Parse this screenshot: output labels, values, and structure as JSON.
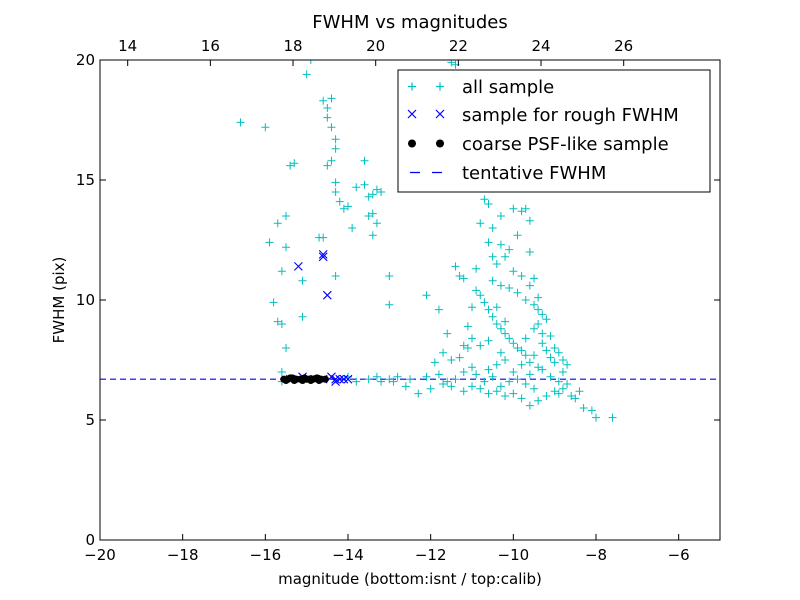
{
  "chart_data": {
    "type": "scatter",
    "title": "FWHM vs magnitudes",
    "xlabel": "magnitude (bottom:isnt / top:calib)",
    "ylabel": "FWHM (pix)",
    "xlim": [
      -20,
      -5
    ],
    "ylim": [
      0,
      20
    ],
    "top_xlim": [
      13.33,
      28.33
    ],
    "x_ticks": [
      -20,
      -18,
      -16,
      -14,
      -12,
      -10,
      -8,
      -6
    ],
    "x_tick_labels": [
      "−20",
      "−18",
      "−16",
      "−14",
      "−12",
      "−10",
      "−8",
      "−6"
    ],
    "y_ticks": [
      0,
      5,
      10,
      15,
      20
    ],
    "y_tick_labels": [
      "0",
      "5",
      "10",
      "15",
      "20"
    ],
    "top_ticks": [
      14,
      16,
      18,
      20,
      22,
      24,
      26
    ],
    "top_tick_labels": [
      "14",
      "16",
      "18",
      "20",
      "22",
      "24",
      "26"
    ],
    "legend_position": "top-right",
    "tentative_fwhm": 6.7,
    "series": [
      {
        "name": "all sample",
        "marker": "plus",
        "color": "#00bfbf",
        "points": [
          [
            -16.6,
            17.4
          ],
          [
            -16.0,
            17.2
          ],
          [
            -15.9,
            12.4
          ],
          [
            -15.7,
            13.2
          ],
          [
            -15.8,
            9.9
          ],
          [
            -15.7,
            9.1
          ],
          [
            -15.6,
            9.0
          ],
          [
            -15.5,
            13.5
          ],
          [
            -15.5,
            12.2
          ],
          [
            -15.6,
            11.2
          ],
          [
            -15.4,
            15.6
          ],
          [
            -15.3,
            15.7
          ],
          [
            -15.6,
            7.0
          ],
          [
            -15.6,
            6.6
          ],
          [
            -15.5,
            8.0
          ],
          [
            -15.1,
            10.8
          ],
          [
            -15.0,
            19.4
          ],
          [
            -14.9,
            20.0
          ],
          [
            -15.1,
            9.3
          ],
          [
            -14.7,
            12.6
          ],
          [
            -14.6,
            12.6
          ],
          [
            -14.6,
            18.3
          ],
          [
            -14.5,
            18.0
          ],
          [
            -14.4,
            18.4
          ],
          [
            -14.5,
            17.6
          ],
          [
            -14.4,
            17.2
          ],
          [
            -14.3,
            16.7
          ],
          [
            -14.3,
            16.3
          ],
          [
            -14.4,
            15.8
          ],
          [
            -14.3,
            14.9
          ],
          [
            -14.3,
            14.5
          ],
          [
            -14.2,
            14.1
          ],
          [
            -14.5,
            15.6
          ],
          [
            -14.3,
            11.0
          ],
          [
            -14.1,
            13.8
          ],
          [
            -14.0,
            13.9
          ],
          [
            -13.9,
            13.0
          ],
          [
            -13.8,
            14.7
          ],
          [
            -13.6,
            15.8
          ],
          [
            -13.6,
            14.8
          ],
          [
            -13.5,
            14.3
          ],
          [
            -13.4,
            14.4
          ],
          [
            -13.3,
            14.6
          ],
          [
            -13.5,
            13.5
          ],
          [
            -13.4,
            13.6
          ],
          [
            -13.3,
            13.2
          ],
          [
            -13.2,
            14.5
          ],
          [
            -13.4,
            12.7
          ],
          [
            -13.0,
            11.0
          ],
          [
            -13.0,
            9.8
          ],
          [
            -12.1,
            10.2
          ],
          [
            -11.7,
            7.8
          ],
          [
            -11.4,
            11.4
          ],
          [
            -11.3,
            11.0
          ],
          [
            -11.2,
            15.7
          ],
          [
            -11.5,
            19.9
          ],
          [
            -11.4,
            19.8
          ],
          [
            -11.0,
            9.7
          ],
          [
            -11.1,
            8.9
          ],
          [
            -11.2,
            8.1
          ],
          [
            -11.6,
            8.6
          ],
          [
            -11.5,
            7.5
          ],
          [
            -10.9,
            17.0
          ],
          [
            -10.8,
            16.8
          ],
          [
            -10.7,
            14.2
          ],
          [
            -10.6,
            14.0
          ],
          [
            -10.6,
            12.4
          ],
          [
            -10.5,
            11.8
          ],
          [
            -10.4,
            11.5
          ],
          [
            -10.3,
            12.3
          ],
          [
            -10.2,
            11.8
          ],
          [
            -10.1,
            12.1
          ],
          [
            -10.0,
            11.2
          ],
          [
            -9.9,
            12.7
          ],
          [
            -9.8,
            13.7
          ],
          [
            -9.7,
            13.8
          ],
          [
            -9.6,
            13.3
          ],
          [
            -9.6,
            12.0
          ],
          [
            -9.5,
            10.9
          ],
          [
            -9.4,
            10.1
          ],
          [
            -9.3,
            9.4
          ],
          [
            -9.2,
            9.2
          ],
          [
            -9.1,
            8.5
          ],
          [
            -9.0,
            8.0
          ],
          [
            -8.9,
            7.8
          ],
          [
            -8.8,
            7.5
          ],
          [
            -8.7,
            7.3
          ],
          [
            -10.9,
            10.4
          ],
          [
            -10.8,
            10.2
          ],
          [
            -10.7,
            9.9
          ],
          [
            -10.6,
            9.6
          ],
          [
            -10.5,
            9.3
          ],
          [
            -10.4,
            9.0
          ],
          [
            -10.3,
            8.8
          ],
          [
            -10.2,
            8.6
          ],
          [
            -10.1,
            8.4
          ],
          [
            -10.0,
            8.2
          ],
          [
            -9.9,
            8.0
          ],
          [
            -9.8,
            7.9
          ],
          [
            -9.7,
            7.7
          ],
          [
            -10.5,
            10.8
          ],
          [
            -10.3,
            10.6
          ],
          [
            -10.1,
            10.5
          ],
          [
            -9.9,
            10.3
          ],
          [
            -9.7,
            10.0
          ],
          [
            -9.5,
            9.8
          ],
          [
            -9.4,
            9.0
          ],
          [
            -9.3,
            8.2
          ],
          [
            -9.5,
            7.7
          ],
          [
            -9.6,
            7.4
          ],
          [
            -11.0,
            7.2
          ],
          [
            -11.3,
            7.6
          ],
          [
            -11.9,
            7.4
          ],
          [
            -11.8,
            6.9
          ],
          [
            -12.1,
            6.8
          ],
          [
            -11.2,
            7.0
          ],
          [
            -10.9,
            6.9
          ],
          [
            -10.6,
            7.1
          ],
          [
            -10.4,
            7.3
          ],
          [
            -10.2,
            7.5
          ],
          [
            -10.0,
            7.0
          ],
          [
            -9.8,
            7.3
          ],
          [
            -9.6,
            6.9
          ],
          [
            -9.3,
            7.1
          ],
          [
            -9.1,
            6.8
          ],
          [
            -8.9,
            6.6
          ],
          [
            -8.8,
            6.3
          ],
          [
            -8.6,
            6.0
          ],
          [
            -8.5,
            5.9
          ],
          [
            -8.3,
            5.5
          ],
          [
            -8.1,
            5.4
          ],
          [
            -8.0,
            5.1
          ],
          [
            -7.6,
            5.1
          ],
          [
            -9.0,
            6.2
          ],
          [
            -9.2,
            6.0
          ],
          [
            -9.4,
            5.8
          ],
          [
            -9.6,
            5.6
          ],
          [
            -9.8,
            5.9
          ],
          [
            -10.0,
            6.1
          ],
          [
            -10.2,
            6.0
          ],
          [
            -10.4,
            6.2
          ],
          [
            -10.6,
            6.1
          ],
          [
            -10.8,
            6.3
          ],
          [
            -11.0,
            6.4
          ],
          [
            -11.2,
            6.2
          ],
          [
            -11.5,
            6.4
          ],
          [
            -12.0,
            6.3
          ],
          [
            -12.3,
            6.1
          ],
          [
            -12.6,
            6.4
          ],
          [
            -12.9,
            6.6
          ],
          [
            -13.2,
            6.6
          ],
          [
            -13.5,
            6.7
          ],
          [
            -13.8,
            6.6
          ],
          [
            -14.0,
            6.8
          ],
          [
            -12.5,
            6.7
          ],
          [
            -12.8,
            6.8
          ],
          [
            -13.0,
            6.7
          ],
          [
            -13.3,
            6.8
          ],
          [
            -11.6,
            6.6
          ],
          [
            -11.4,
            6.7
          ],
          [
            -11.7,
            6.5
          ],
          [
            -10.1,
            6.6
          ],
          [
            -9.7,
            6.5
          ],
          [
            -9.5,
            6.3
          ],
          [
            -10.3,
            6.4
          ],
          [
            -10.7,
            6.6
          ],
          [
            -10.5,
            6.8
          ],
          [
            -9.9,
            6.7
          ],
          [
            -11.8,
            9.6
          ],
          [
            -11.2,
            10.9
          ],
          [
            -10.9,
            11.3
          ],
          [
            -10.8,
            13.2
          ],
          [
            -10.5,
            13.0
          ],
          [
            -10.3,
            13.5
          ],
          [
            -10.0,
            13.8
          ],
          [
            -9.8,
            11.0
          ],
          [
            -9.6,
            10.6
          ],
          [
            -9.4,
            9.6
          ],
          [
            -9.2,
            7.9
          ],
          [
            -9.0,
            7.4
          ],
          [
            -8.8,
            7.0
          ],
          [
            -9.1,
            7.6
          ],
          [
            -9.3,
            8.6
          ],
          [
            -10.2,
            9.1
          ],
          [
            -10.4,
            9.7
          ],
          [
            -10.6,
            8.3
          ],
          [
            -10.8,
            8.1
          ],
          [
            -11.0,
            8.4
          ],
          [
            -11.1,
            8.0
          ],
          [
            -10.3,
            7.8
          ],
          [
            -9.7,
            8.4
          ],
          [
            -9.5,
            8.8
          ],
          [
            -9.4,
            7.2
          ],
          [
            -8.9,
            6.1
          ],
          [
            -8.7,
            6.5
          ],
          [
            -8.4,
            6.2
          ]
        ]
      },
      {
        "name": "sample for rough FWHM",
        "marker": "x",
        "color": "#0000ff",
        "points": [
          [
            -15.2,
            11.4
          ],
          [
            -14.6,
            11.9
          ],
          [
            -14.5,
            10.2
          ],
          [
            -14.6,
            11.8
          ],
          [
            -15.4,
            6.7
          ],
          [
            -15.2,
            6.7
          ],
          [
            -15.0,
            6.7
          ],
          [
            -14.8,
            6.7
          ],
          [
            -14.6,
            6.7
          ],
          [
            -14.4,
            6.8
          ],
          [
            -14.3,
            6.7
          ],
          [
            -14.2,
            6.7
          ],
          [
            -14.1,
            6.7
          ],
          [
            -14.0,
            6.7
          ],
          [
            -14.3,
            6.6
          ],
          [
            -15.1,
            6.8
          ]
        ]
      },
      {
        "name": "coarse PSF-like sample",
        "marker": "circle",
        "color": "#000000",
        "points": [
          [
            -15.55,
            6.7
          ],
          [
            -15.45,
            6.7
          ],
          [
            -15.35,
            6.75
          ],
          [
            -15.25,
            6.7
          ],
          [
            -15.15,
            6.7
          ],
          [
            -15.05,
            6.75
          ],
          [
            -14.95,
            6.7
          ],
          [
            -14.85,
            6.7
          ],
          [
            -14.75,
            6.75
          ],
          [
            -14.65,
            6.7
          ],
          [
            -14.55,
            6.7
          ],
          [
            -15.5,
            6.65
          ],
          [
            -15.3,
            6.65
          ],
          [
            -15.1,
            6.65
          ],
          [
            -14.9,
            6.65
          ],
          [
            -14.7,
            6.65
          ],
          [
            -15.4,
            6.75
          ],
          [
            -15.0,
            6.7
          ],
          [
            -14.8,
            6.72
          ]
        ]
      },
      {
        "name": "tentative FWHM",
        "marker": "dashed-line",
        "color": "#0000ff",
        "points": []
      }
    ]
  }
}
